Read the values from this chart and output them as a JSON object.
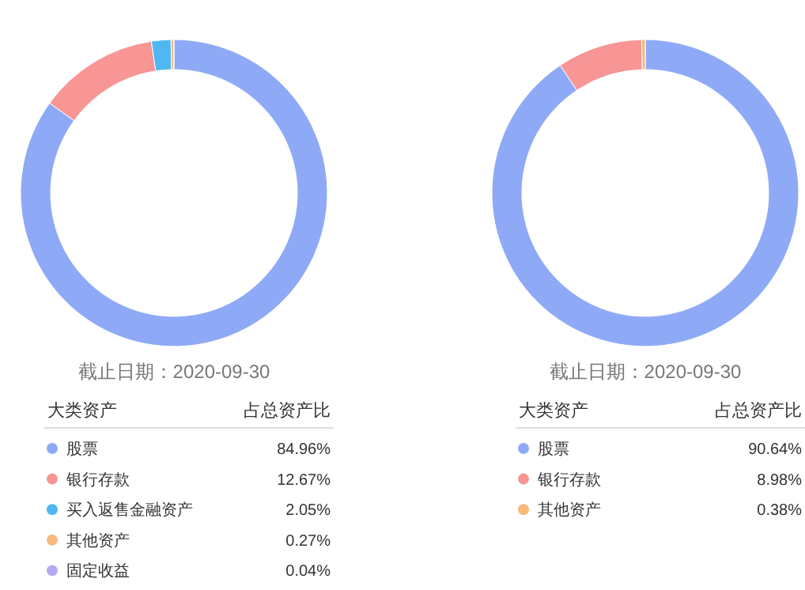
{
  "chart_data": [
    {
      "type": "donut",
      "annotations": [
        "截止日期：2020-09-30",
        "大类资产",
        "占总资产比"
      ],
      "categories": [
        "股票",
        "银行存款",
        "买入返售金融资产",
        "其他资产",
        "固定收益"
      ],
      "values": [
        84.96,
        12.67,
        2.05,
        0.27,
        0.04
      ],
      "value_labels": [
        "84.96%",
        "12.67%",
        "2.05%",
        "0.27%",
        "0.04%"
      ],
      "colors": [
        "#8eaaf7",
        "#f89595",
        "#4fb8f2",
        "#f7b97c",
        "#b7a8f2"
      ],
      "legend": "bottom"
    },
    {
      "type": "donut",
      "annotations": [
        "截止日期：2020-09-30",
        "大类资产",
        "占总资产比"
      ],
      "categories": [
        "股票",
        "银行存款",
        "其他资产"
      ],
      "values": [
        90.64,
        8.98,
        0.38
      ],
      "value_labels": [
        "90.64%",
        "8.98%",
        "0.38%"
      ],
      "colors": [
        "#8eaaf7",
        "#f89595",
        "#f7b97c"
      ],
      "legend": "bottom"
    }
  ]
}
